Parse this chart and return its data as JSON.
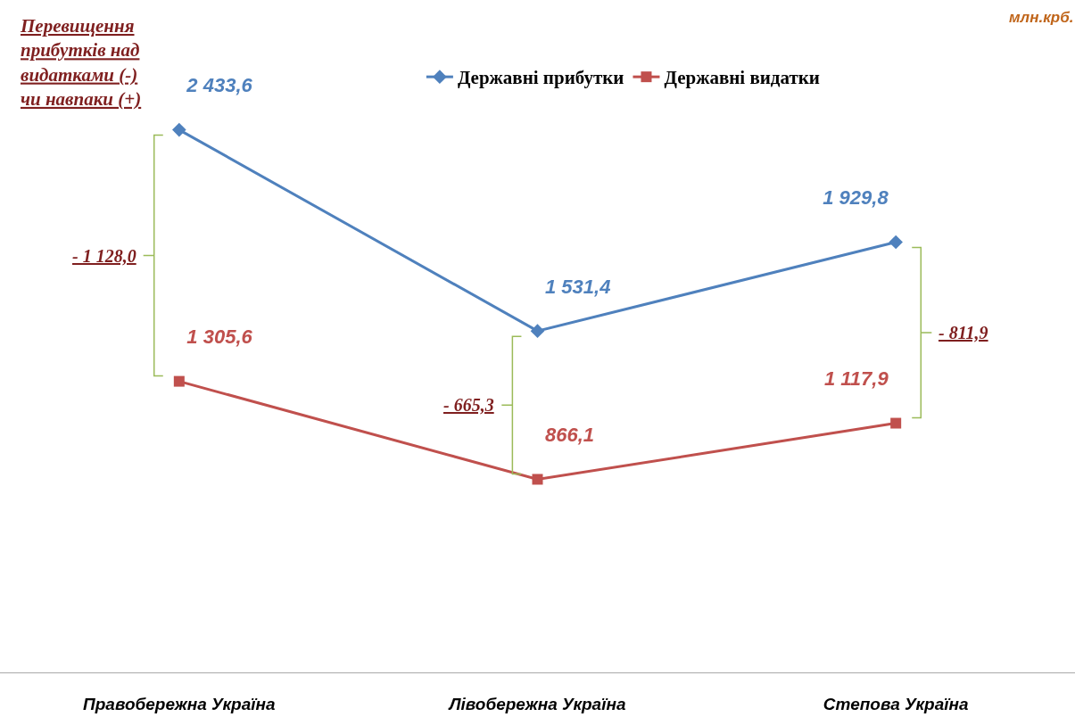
{
  "chart_data": {
    "type": "line",
    "categories": [
      "Правобережна Україна",
      "Лівобережна Україна",
      "Степова Україна"
    ],
    "series": [
      {
        "name": "Державні прибутки",
        "color": "#4f81bd",
        "marker": "diamond",
        "values": [
          2433.6,
          1531.4,
          1929.8
        ],
        "value_labels": [
          "2 433,6",
          "1 531,4",
          "1 929,8"
        ]
      },
      {
        "name": "Державні видатки",
        "color": "#c0504d",
        "marker": "square",
        "values": [
          1305.6,
          866.1,
          1117.9
        ],
        "value_labels": [
          "1 305,6",
          "866,1",
          "1 117,9"
        ]
      }
    ],
    "ylim": [
      0,
      3000
    ],
    "tick_labels": "x",
    "grid": false,
    "legend": "top",
    "line_style": "solid",
    "annotations": [
      "млн.крб.",
      "Перевищення\nприбутків над\nвидатками (-)\nчи навпаки (+)",
      "- 1 128,0",
      "- 665,3",
      "- 811,9"
    ]
  }
}
